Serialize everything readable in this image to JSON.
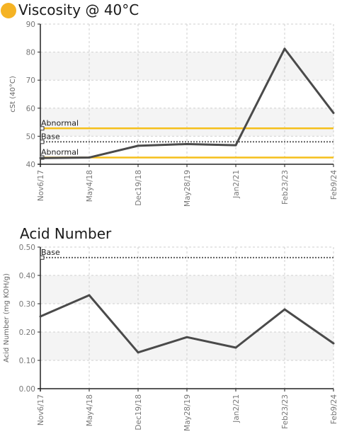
{
  "colors": {
    "series": "#4a4a4a",
    "abnormal": "#f5bf1a",
    "base": "#555555",
    "band": "#f4f4f4",
    "grid": "#cfcfcf",
    "axis": "#222222",
    "title_dot": "#f5b324"
  },
  "chart_data": [
    {
      "type": "line",
      "title": "Viscosity @ 40°C",
      "ylabel": "cSt (40°C)",
      "categories": [
        "Nov6/17",
        "May4/18",
        "Dec19/18",
        "May28/19",
        "Jan2/21",
        "Feb23/23",
        "Feb9/24"
      ],
      "values": [
        42.2,
        42.4,
        46.6,
        47.2,
        46.8,
        81.2,
        58.3
      ],
      "ylim": [
        40,
        90
      ],
      "yticks": [
        "40",
        "50",
        "60",
        "70",
        "80",
        "90"
      ],
      "ytick_values": [
        40,
        50,
        60,
        70,
        80,
        90
      ],
      "reference_lines": [
        {
          "label": "Abnormal",
          "value": 52.8,
          "style": "abnormal"
        },
        {
          "label": "Base",
          "value": 48.0,
          "style": "base"
        },
        {
          "label": "Abnormal",
          "value": 42.4,
          "style": "abnormal"
        }
      ],
      "grid": true
    },
    {
      "type": "line",
      "title": "Acid Number",
      "ylabel": "Acid Number (mg KOH/g)",
      "categories": [
        "Nov6/17",
        "May4/18",
        "Dec19/18",
        "May28/19",
        "Jan2/21",
        "Feb23/23",
        "Feb9/24"
      ],
      "values": [
        0.255,
        0.33,
        0.128,
        0.182,
        0.145,
        0.28,
        0.16
      ],
      "ylim": [
        0,
        0.5
      ],
      "yticks": [
        "0.00",
        "0.10",
        "0.20",
        "0.30",
        "0.40",
        "0.50"
      ],
      "ytick_values": [
        0,
        0.1,
        0.2,
        0.3,
        0.4,
        0.5
      ],
      "reference_lines": [
        {
          "label": "Base",
          "value": 0.463,
          "style": "base"
        }
      ],
      "grid": true
    }
  ]
}
